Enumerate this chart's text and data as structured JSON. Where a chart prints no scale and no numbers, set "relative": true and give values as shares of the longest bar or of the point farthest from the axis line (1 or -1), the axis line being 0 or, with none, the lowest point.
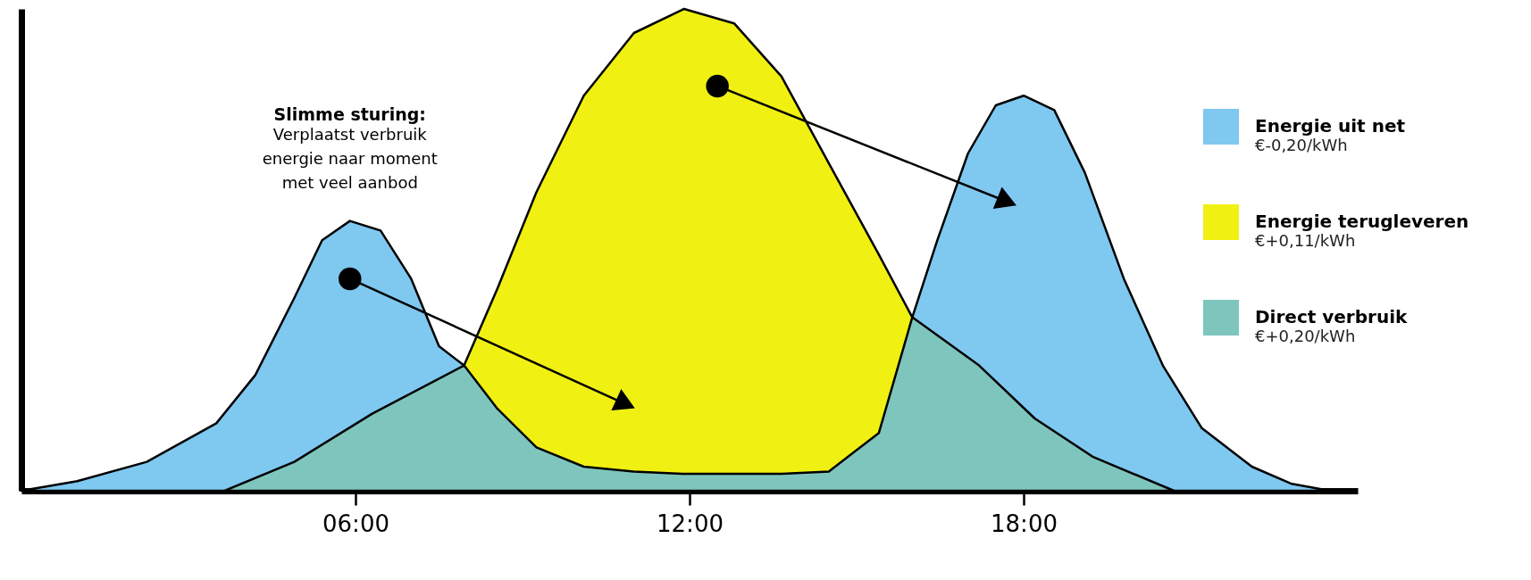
{
  "chart_data": {
    "type": "area",
    "relative": true,
    "xlim": [
      0,
      24
    ],
    "xticks": [
      {
        "value": 6,
        "label": "06:00"
      },
      {
        "value": 12,
        "label": "12:00"
      },
      {
        "value": 18,
        "label": "18:00"
      }
    ],
    "legend": "top right",
    "annotations": [
      "Slimme sturing:",
      "Verplaatst verbruik energie naar moment met veel aanbod",
      "€-0,20/kWh",
      "€+0,11/kWh",
      "€+0,20/kWh"
    ],
    "series": [
      {
        "name": "Energie uit net",
        "color": "#7fc8f0",
        "x": [
          0,
          1,
          2.25,
          3.5,
          4.2,
          4.9,
          5.4,
          5.9,
          6.45,
          7,
          7.5,
          7.95,
          12,
          16,
          16.45,
          17,
          17.5,
          18,
          18.55,
          19.1,
          19.8,
          20.5,
          21.2,
          22.1,
          22.8,
          23.5
        ],
        "values": [
          0,
          0.02,
          0.06,
          0.14,
          0.24,
          0.4,
          0.52,
          0.56,
          0.54,
          0.44,
          0.3,
          0.26,
          null,
          0.36,
          0.52,
          0.7,
          0.8,
          0.82,
          0.79,
          0.66,
          0.44,
          0.26,
          0.13,
          0.05,
          0.015,
          0
        ]
      },
      {
        "name": "Energie terugleveren",
        "color": "#f0f013",
        "x": [
          7.95,
          8.55,
          9.25,
          10.1,
          11,
          11.9,
          12.8,
          13.65,
          14.5,
          15.4,
          16
        ],
        "values": [
          0.26,
          0.42,
          0.62,
          0.82,
          0.95,
          1,
          0.97,
          0.86,
          0.68,
          0.49,
          0.36
        ]
      },
      {
        "name": "Direct verbruik",
        "color": "#7ec6bd",
        "x": [
          3.65,
          4.9,
          6.3,
          7.95,
          8.55,
          9.25,
          10.1,
          11,
          11.9,
          12.8,
          13.65,
          14.5,
          15.4,
          16,
          17.2,
          18.2,
          19.25,
          20.7
        ],
        "values": [
          0,
          0.06,
          0.16,
          0.26,
          0.17,
          0.09,
          0.05,
          0.04,
          0.035,
          0.035,
          0.035,
          0.04,
          0.12,
          0.36,
          0.26,
          0.15,
          0.07,
          0
        ]
      }
    ]
  }
}
